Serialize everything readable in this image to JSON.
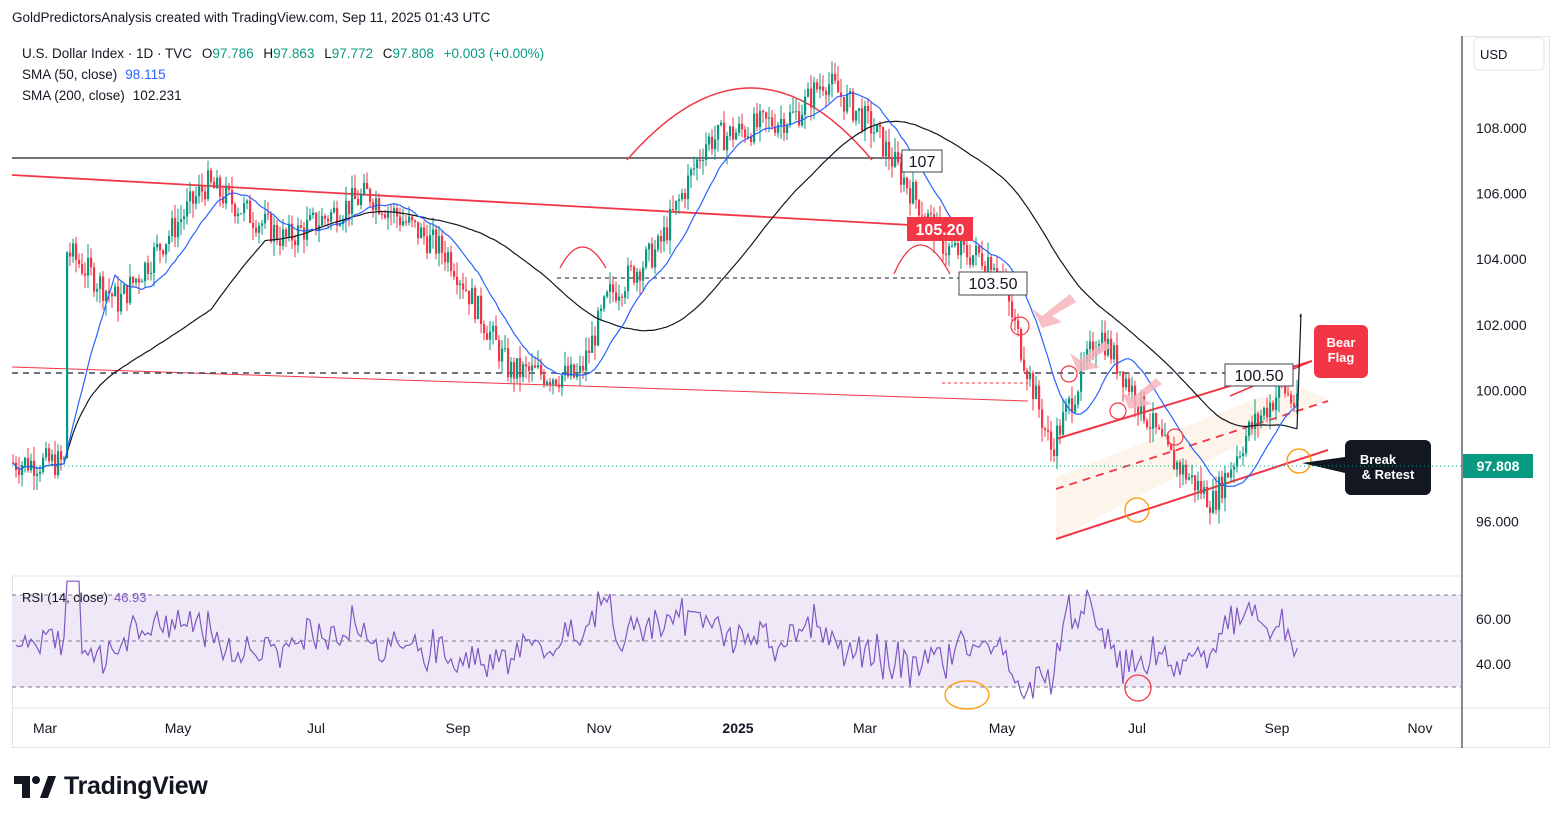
{
  "header": {
    "text": "GoldPredictorsAnalysis created with TradingView.com, Sep 11, 2025 01:43 UTC"
  },
  "legend": {
    "symbol_line": "U.S. Dollar Index · 1D · TVC",
    "open_label": "O",
    "open": "97.786",
    "high_label": "H",
    "high": "97.863",
    "low_label": "L",
    "low": "97.772",
    "close_label": "C",
    "close": "97.808",
    "change": "+0.003 (+0.00%)",
    "sma50_label": "SMA (50, close)",
    "sma50_value": "98.115",
    "sma200_label": "SMA (200, close)",
    "sma200_value": "102.231"
  },
  "currency": "USD",
  "price_axis": {
    "ticks": [
      "108.000",
      "106.000",
      "104.000",
      "102.000",
      "100.000",
      "96.000"
    ],
    "last_price": "97.808"
  },
  "rsi": {
    "label": "RSI (14, close)",
    "value": "46.93",
    "ticks": [
      "60.00",
      "40.00"
    ]
  },
  "time_axis": [
    "Mar",
    "May",
    "Jul",
    "Sep",
    "Nov",
    "2025",
    "Mar",
    "May",
    "Jul",
    "Sep",
    "Nov"
  ],
  "annotations": {
    "level_107": "107",
    "level_105": "105.20",
    "level_103": "103.50",
    "level_100": "100.50",
    "bear_flag": [
      "Bear",
      "Flag"
    ],
    "break_retest": [
      "Break",
      "& Retest"
    ]
  },
  "colors": {
    "up": "#089981",
    "down": "#f23645",
    "sma50": "#2962ff",
    "sma200": "#131722",
    "rsi": "#7e57c2",
    "annot_red": "#f23645",
    "price_tag": "#089981"
  },
  "footer": {
    "brand": "TradingView"
  },
  "chart_data": {
    "type": "candlestick",
    "symbol": "U.S. Dollar Index",
    "timeframe": "1D",
    "x_range": [
      "Mar 2024",
      "Nov 2025"
    ],
    "y_range": [
      95.0,
      110.0
    ],
    "close_path": [
      {
        "date": "2024-02-15",
        "close": 104.3
      },
      {
        "date": "2024-03-08",
        "close": 102.7
      },
      {
        "date": "2024-04-16",
        "close": 106.3
      },
      {
        "date": "2024-05-20",
        "close": 104.6
      },
      {
        "date": "2024-06-26",
        "close": 106.0
      },
      {
        "date": "2024-07-31",
        "close": 104.1
      },
      {
        "date": "2024-08-27",
        "close": 100.6
      },
      {
        "date": "2024-09-27",
        "close": 100.4
      },
      {
        "date": "2024-10-10",
        "close": 102.9
      },
      {
        "date": "2024-11-01",
        "close": 104.3
      },
      {
        "date": "2024-11-22",
        "close": 107.6
      },
      {
        "date": "2024-12-31",
        "close": 108.4
      },
      {
        "date": "2025-01-13",
        "close": 109.5
      },
      {
        "date": "2025-02-04",
        "close": 108.0
      },
      {
        "date": "2025-03-06",
        "close": 104.3
      },
      {
        "date": "2025-03-27",
        "close": 104.0
      },
      {
        "date": "2025-04-21",
        "close": 98.2
      },
      {
        "date": "2025-05-12",
        "close": 101.8
      },
      {
        "date": "2025-06-12",
        "close": 98.0
      },
      {
        "date": "2025-07-01",
        "close": 96.6
      },
      {
        "date": "2025-07-16",
        "close": 98.7
      },
      {
        "date": "2025-07-31",
        "close": 100.1
      },
      {
        "date": "2025-08-20",
        "close": 98.2
      },
      {
        "date": "2025-09-10",
        "close": 97.8
      }
    ],
    "sma50": {
      "last": 98.115
    },
    "sma200": {
      "last": 102.231
    },
    "horizontal_levels": [
      107,
      105.2,
      103.5,
      100.5
    ],
    "rsi": {
      "period": 14,
      "last": 46.93,
      "levels": [
        70,
        30
      ]
    }
  }
}
